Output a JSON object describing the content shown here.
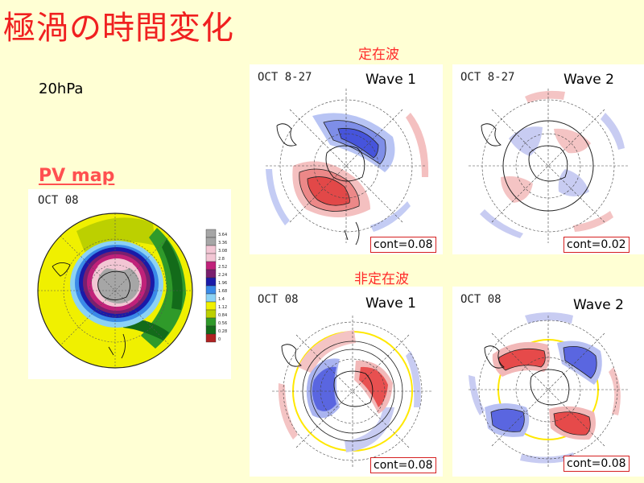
{
  "title": "極渦の時間変化",
  "level": "20hPa",
  "pv_label": "PV map",
  "pv_panel": {
    "date": "OCT 08",
    "colorbar": [
      {
        "label": "3.64",
        "color": "#a6a6a6"
      },
      {
        "label": "3.36",
        "color": "#a6a6a6"
      },
      {
        "label": "3.08",
        "color": "#f2c6d4"
      },
      {
        "label": "2.8",
        "color": "#f2c6d4"
      },
      {
        "label": "2.52",
        "color": "#c0227a"
      },
      {
        "label": "2.24",
        "color": "#7a1f6e"
      },
      {
        "label": "1.96",
        "color": "#1a1aa8"
      },
      {
        "label": "1.68",
        "color": "#3a8ae8"
      },
      {
        "label": "1.4",
        "color": "#8cd2f4"
      },
      {
        "label": "1.12",
        "color": "#f0f000"
      },
      {
        "label": "0.84",
        "color": "#bcd000"
      },
      {
        "label": "0.56",
        "color": "#2f9a2a"
      },
      {
        "label": "0.28",
        "color": "#136b1a"
      },
      {
        "label": "0",
        "color": "#b02222"
      }
    ]
  },
  "stationary": {
    "heading": "定在波",
    "wave1": {
      "date": "OCT 8-27",
      "label": "Wave 1",
      "cont": "cont=0.08"
    },
    "wave2": {
      "date": "OCT 8-27",
      "label": "Wave 2",
      "cont": "cont=0.02"
    }
  },
  "nonstationary": {
    "heading": "非定在波",
    "wave1": {
      "date": "OCT 08",
      "label": "Wave 1",
      "cont": "cont=0.08"
    },
    "wave2": {
      "date": "OCT 08",
      "label": "Wave 2",
      "cont": "cont=0.08"
    }
  },
  "colors": {
    "title": "#f02020",
    "positive": "#e83030",
    "negative": "#3040d8",
    "background": "#ffffd4"
  }
}
